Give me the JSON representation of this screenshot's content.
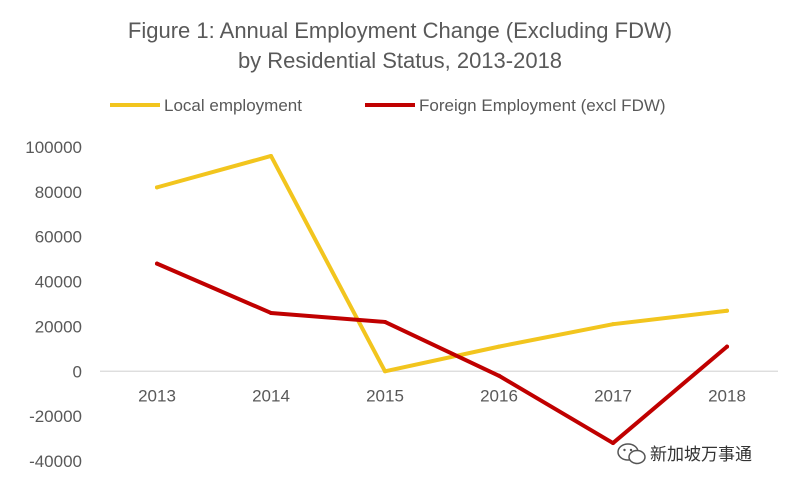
{
  "chart_data": {
    "type": "line",
    "title_lines": [
      "Figure 1: Annual Employment Change (Excluding FDW)",
      "by Residential Status, 2013-2018"
    ],
    "xlabel": "",
    "ylabel": "",
    "categories": [
      "2013",
      "2014",
      "2015",
      "2016",
      "2017",
      "2018"
    ],
    "ylim": [
      -40000,
      100000
    ],
    "yticks": [
      100000,
      80000,
      60000,
      40000,
      20000,
      0,
      -20000,
      -40000
    ],
    "grid": false,
    "legend_position": "top",
    "series": [
      {
        "name": "Local employment",
        "color": "#F2C51E",
        "values": [
          82000,
          96000,
          0,
          11000,
          21000,
          27000
        ]
      },
      {
        "name": "Foreign Employment (excl FDW)",
        "color": "#C00000",
        "values": [
          48000,
          26000,
          22000,
          -2000,
          -32000,
          11000
        ]
      }
    ]
  },
  "watermark": {
    "icon": "wechat-icon",
    "text": "新加坡万事通"
  }
}
